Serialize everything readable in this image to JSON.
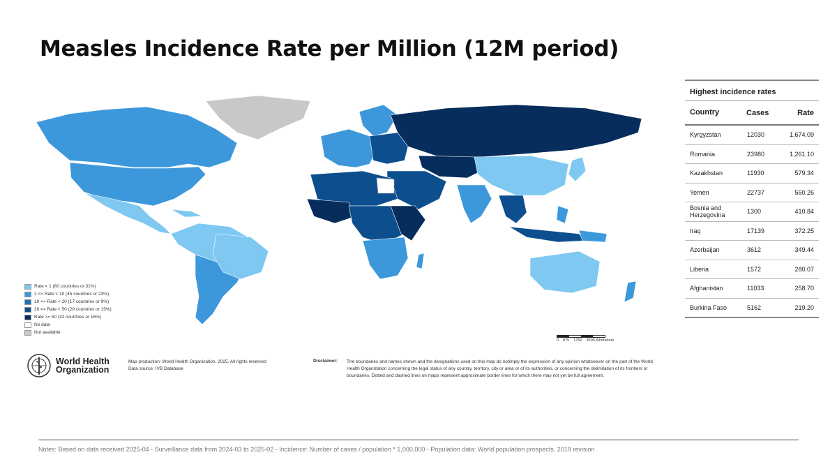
{
  "title": "Measles Incidence Rate per Million (12M period)",
  "colors": {
    "rate_lt1": "#7fc8f2",
    "rate_1_10": "#3d98db",
    "rate_10_20": "#1f6fb3",
    "rate_20_50": "#0d4f8e",
    "rate_ge50": "#062d5c",
    "no_data": "#ffffff",
    "not_available": "#c8c8c8"
  },
  "legend": [
    {
      "label": "Rate < 1 (60 countries or 31%)",
      "color": "#7fc8f2"
    },
    {
      "label": "1 <= Rate < 10 (45 countries or 23%)",
      "color": "#3d98db"
    },
    {
      "label": "10 <= Rate < 20 (17 countries or 9%)",
      "color": "#1f6fb3"
    },
    {
      "label": "20 <= Rate < 50 (29 countries or 15%)",
      "color": "#0d4f8e"
    },
    {
      "label": "Rate >= 50 (32 countries or 16%)",
      "color": "#062d5c"
    },
    {
      "label": "No data",
      "color": "#ffffff"
    },
    {
      "label": "Not available",
      "color": "#c8c8c8"
    }
  ],
  "scale": {
    "labels": [
      "0",
      "875",
      "1750",
      "3500 Kilometers"
    ]
  },
  "logo": {
    "line1": "World Health",
    "line2": "Organization"
  },
  "credits": {
    "line1": "Map production: World Health Organization, 2025. All rights reserved",
    "line2": "Data source: IVB Database"
  },
  "disclaimer": {
    "label": "Disclaimer:",
    "text": "The boundaries and names shown and the designations used on this map do notimply the expression of any opinion whatsoever on the part of the World Health Organization concerning the legal status of any country, territory, city or area or of its authorities, or concerning the delimitation of its frontiers or boundaries. Dotted and dashed lines on maps represent approximate border lines for which there may not yet be full agreement."
  },
  "table": {
    "title": "Highest incidence rates",
    "headers": {
      "country": "Country",
      "cases": "Cases",
      "rate": "Rate"
    },
    "rows": [
      {
        "country": "Kyrgyzstan",
        "cases": "12030",
        "rate": "1,674.09"
      },
      {
        "country": "Romania",
        "cases": "23980",
        "rate": "1,261.10"
      },
      {
        "country": "Kazakhstan",
        "cases": "11930",
        "rate": "579.34"
      },
      {
        "country": "Yemen",
        "cases": "22737",
        "rate": "560.26"
      },
      {
        "country": "Bosnia and Herzegovina",
        "cases": "1300",
        "rate": "410.84"
      },
      {
        "country": "Iraq",
        "cases": "17139",
        "rate": "372.25"
      },
      {
        "country": "Azerbaijan",
        "cases": "3612",
        "rate": "349.44"
      },
      {
        "country": "Liberia",
        "cases": "1572",
        "rate": "280.07"
      },
      {
        "country": "Afghanistan",
        "cases": "11033",
        "rate": "258.70"
      },
      {
        "country": "Burkina Faso",
        "cases": "5162",
        "rate": "219.20"
      }
    ]
  },
  "notes": "Notes: Based on data received 2025-04 - Surveillance data from 2024-03 to 2025-02 - Incidence: Number of cases / population * 1,000,000 - Population data: World population prospects, 2019 revision"
}
